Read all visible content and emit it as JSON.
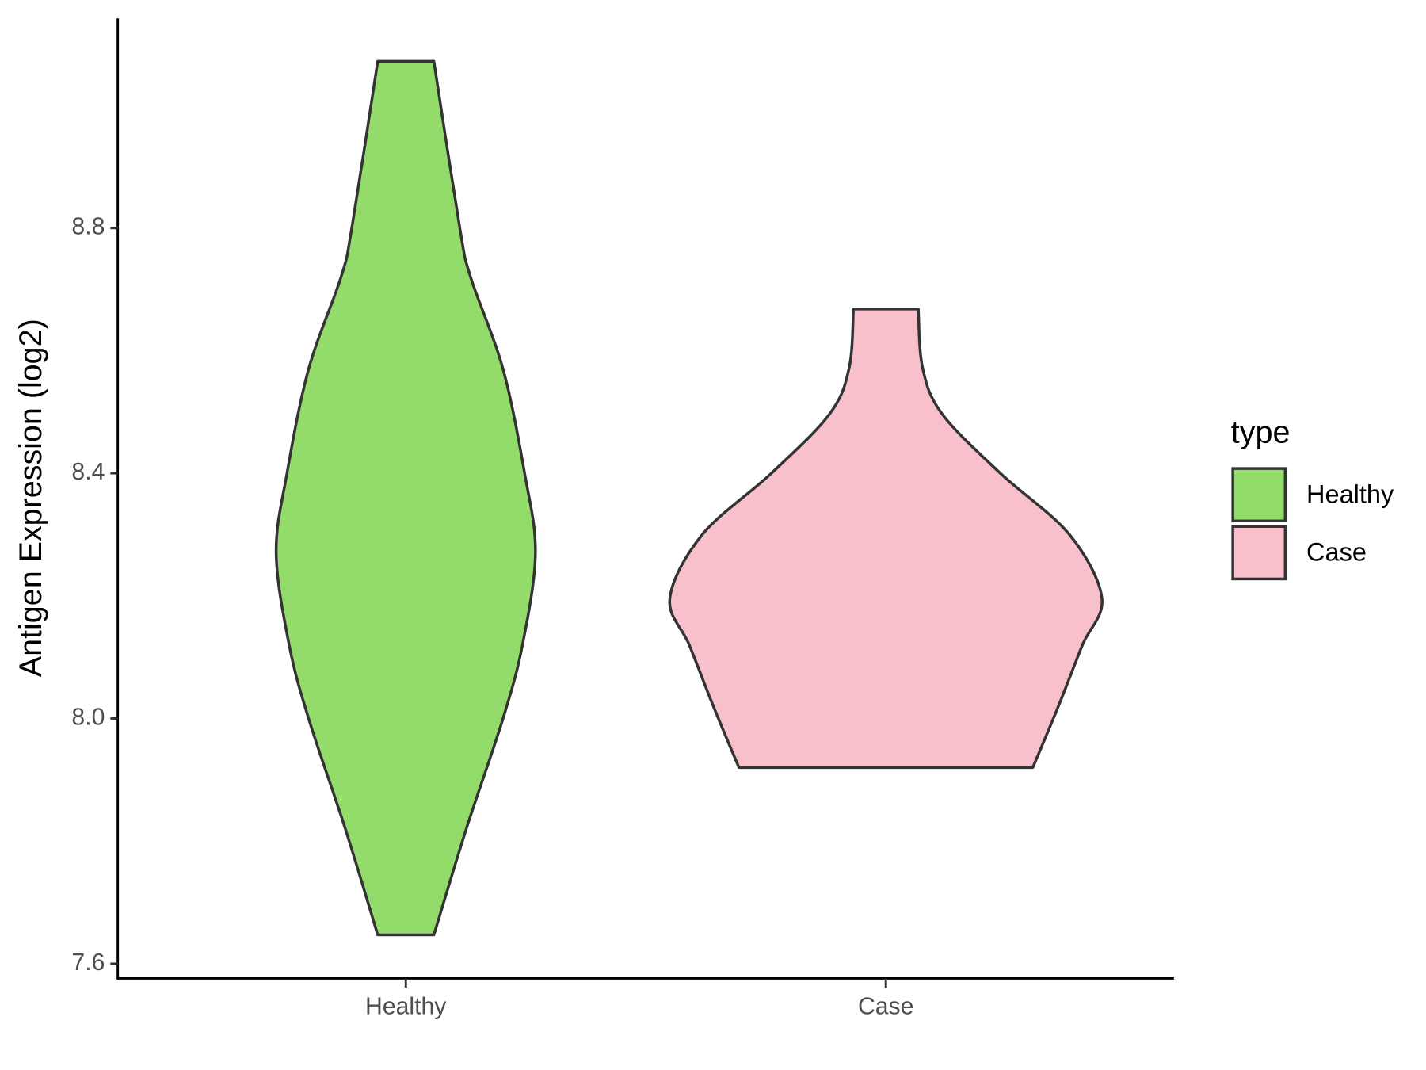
{
  "chart_data": {
    "type": "violin",
    "y_label": "Antigen Expression (log2)",
    "legend_title": "type",
    "categories": [
      "Healthy",
      "Case"
    ],
    "series": [
      {
        "name": "Healthy",
        "color": "#93dc6b",
        "density_y": [
          7.647,
          7.82,
          8.0,
          8.12,
          8.27,
          8.4,
          8.57,
          8.72,
          8.8,
          9.072
        ],
        "density": [
          0.13,
          0.28,
          0.45,
          0.54,
          0.6,
          0.55,
          0.45,
          0.3,
          0.25,
          0.13
        ]
      },
      {
        "name": "Case",
        "color": "#f7c0cb",
        "density_y": [
          7.92,
          7.97,
          8.03,
          8.12,
          8.196,
          8.3,
          8.4,
          8.497,
          8.572,
          8.668
        ],
        "density": [
          0.68,
          0.74,
          0.81,
          0.91,
          1.0,
          0.85,
          0.53,
          0.26,
          0.17,
          0.15
        ]
      }
    ],
    "ylim": [
      7.576,
      9.142
    ],
    "yticks": [
      7.6,
      {
        "value": 8,
        "label": "8.0"
      },
      8.4,
      8.8
    ],
    "legend_position": "right"
  }
}
